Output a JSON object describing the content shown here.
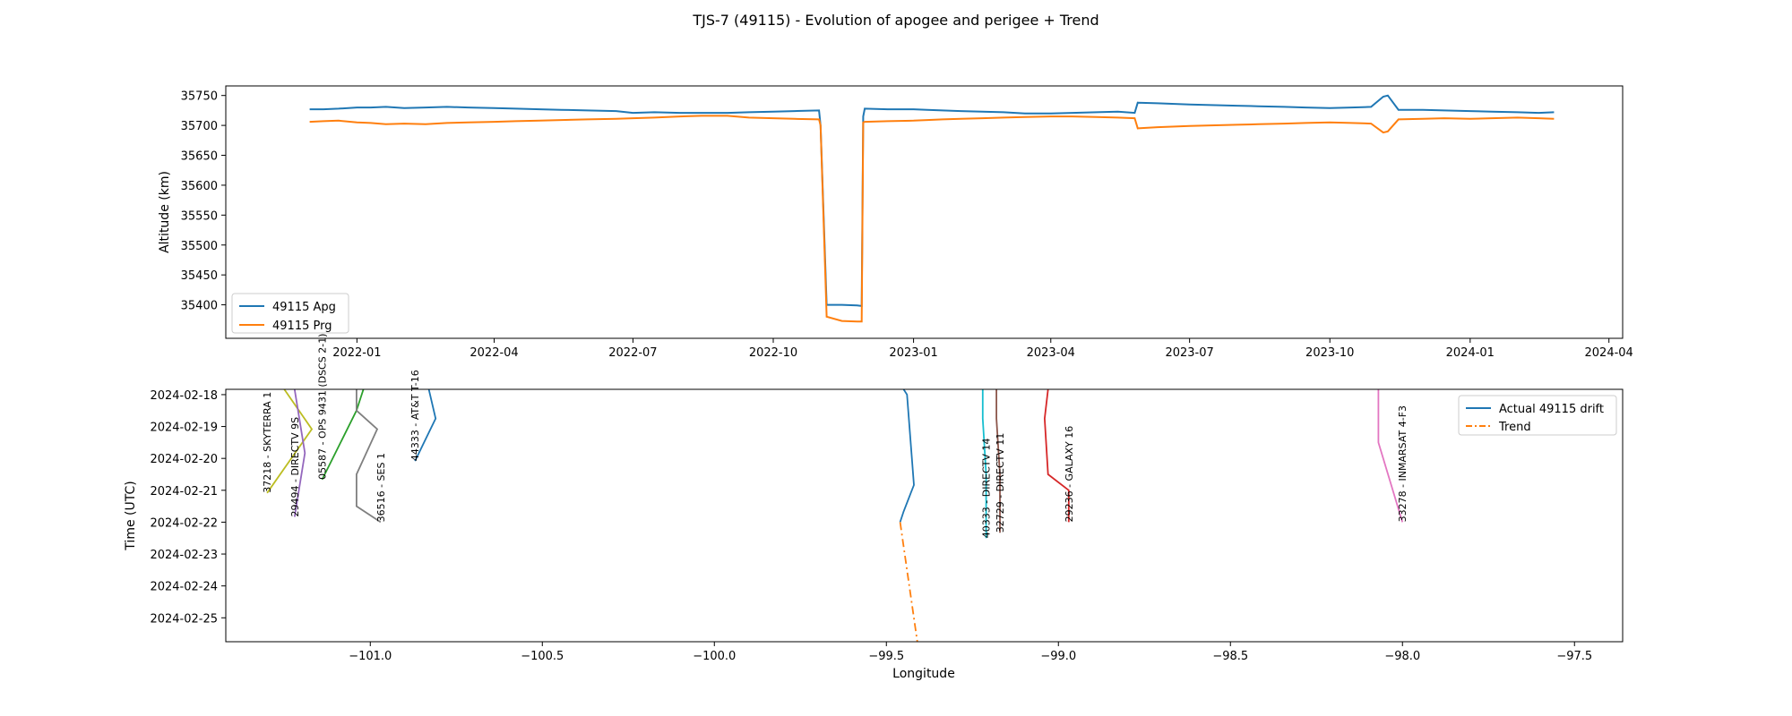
{
  "title": "TJS-7 (49115) - Evolution of apogee and perigee + Trend",
  "chart_data": [
    {
      "type": "line",
      "ylabel": "Altitude (km)",
      "xlabel": "",
      "x_is_date": true,
      "xlim": [
        "2021-10-07",
        "2024-04-10"
      ],
      "ylim": [
        35344,
        35766
      ],
      "xticks": [
        "2022-01",
        "2022-04",
        "2022-07",
        "2022-10",
        "2023-01",
        "2023-04",
        "2023-07",
        "2023-10",
        "2024-01",
        "2024-04"
      ],
      "yticks": [
        35400,
        35450,
        35500,
        35550,
        35600,
        35650,
        35700,
        35750
      ],
      "legend_position": "lower-left",
      "series": [
        {
          "name": "49115 Apg",
          "color": "#1f77b4",
          "x": [
            "2021-12-01",
            "2021-12-10",
            "2021-12-20",
            "2022-01-01",
            "2022-01-10",
            "2022-01-20",
            "2022-02-01",
            "2022-02-15",
            "2022-03-01",
            "2022-03-15",
            "2022-04-01",
            "2022-04-15",
            "2022-05-01",
            "2022-05-15",
            "2022-06-01",
            "2022-06-20",
            "2022-07-01",
            "2022-07-15",
            "2022-08-01",
            "2022-08-15",
            "2022-09-01",
            "2022-09-15",
            "2022-10-01",
            "2022-10-15",
            "2022-10-31",
            "2022-11-01",
            "2022-11-05",
            "2022-11-15",
            "2022-11-25",
            "2022-11-28",
            "2022-11-29",
            "2022-11-30",
            "2022-12-15",
            "2023-01-01",
            "2023-01-10",
            "2023-01-20",
            "2023-02-01",
            "2023-02-15",
            "2023-03-01",
            "2023-03-15",
            "2023-04-01",
            "2023-04-15",
            "2023-05-01",
            "2023-05-15",
            "2023-05-26",
            "2023-05-28",
            "2023-06-10",
            "2023-07-01",
            "2023-07-15",
            "2023-08-01",
            "2023-08-15",
            "2023-09-01",
            "2023-09-15",
            "2023-10-01",
            "2023-10-15",
            "2023-10-28",
            "2023-11-05",
            "2023-11-08",
            "2023-11-15",
            "2023-12-01",
            "2023-12-15",
            "2024-01-01",
            "2024-01-15",
            "2024-02-01",
            "2024-02-15",
            "2024-02-25"
          ],
          "values": [
            35727,
            35727,
            35728,
            35730,
            35730,
            35731,
            35729,
            35730,
            35731,
            35730,
            35729,
            35728,
            35727,
            35726,
            35725,
            35724,
            35721,
            35722,
            35721,
            35721,
            35721,
            35722,
            35723,
            35724,
            35725,
            35700,
            35400,
            35400,
            35399,
            35398,
            35715,
            35728,
            35727,
            35727,
            35726,
            35725,
            35724,
            35723,
            35722,
            35720,
            35720,
            35721,
            35722,
            35723,
            35721,
            35738,
            35737,
            35735,
            35734,
            35733,
            35732,
            35731,
            35730,
            35729,
            35730,
            35731,
            35748,
            35750,
            35726,
            35726,
            35725,
            35724,
            35723,
            35722,
            35721,
            35722
          ]
        },
        {
          "name": "49115 Prg",
          "color": "#ff7f0e",
          "x": [
            "2021-12-01",
            "2021-12-10",
            "2021-12-20",
            "2022-01-01",
            "2022-01-10",
            "2022-01-20",
            "2022-02-01",
            "2022-02-15",
            "2022-03-01",
            "2022-03-15",
            "2022-04-01",
            "2022-04-15",
            "2022-05-01",
            "2022-05-15",
            "2022-06-01",
            "2022-06-20",
            "2022-07-01",
            "2022-07-15",
            "2022-08-01",
            "2022-08-15",
            "2022-09-01",
            "2022-09-15",
            "2022-10-01",
            "2022-10-15",
            "2022-10-31",
            "2022-11-01",
            "2022-11-05",
            "2022-11-15",
            "2022-11-25",
            "2022-11-28",
            "2022-11-29",
            "2022-11-30",
            "2022-12-15",
            "2023-01-01",
            "2023-01-10",
            "2023-01-20",
            "2023-02-01",
            "2023-02-15",
            "2023-03-01",
            "2023-03-15",
            "2023-04-01",
            "2023-04-15",
            "2023-05-01",
            "2023-05-15",
            "2023-05-26",
            "2023-05-28",
            "2023-06-10",
            "2023-07-01",
            "2023-07-15",
            "2023-08-01",
            "2023-08-15",
            "2023-09-01",
            "2023-09-15",
            "2023-10-01",
            "2023-10-15",
            "2023-10-28",
            "2023-11-05",
            "2023-11-08",
            "2023-11-15",
            "2023-12-01",
            "2023-12-15",
            "2024-01-01",
            "2024-01-15",
            "2024-02-01",
            "2024-02-15",
            "2024-02-25"
          ],
          "values": [
            35706,
            35707,
            35708,
            35705,
            35704,
            35702,
            35703,
            35702,
            35704,
            35705,
            35706,
            35707,
            35708,
            35709,
            35710,
            35711,
            35712,
            35713,
            35715,
            35716,
            35716,
            35713,
            35712,
            35711,
            35710,
            35700,
            35380,
            35373,
            35372,
            35372,
            35705,
            35706,
            35707,
            35708,
            35709,
            35710,
            35711,
            35712,
            35713,
            35714,
            35715,
            35715,
            35714,
            35713,
            35712,
            35695,
            35697,
            35699,
            35700,
            35701,
            35702,
            35703,
            35704,
            35705,
            35704,
            35703,
            35688,
            35690,
            35710,
            35711,
            35712,
            35711,
            35712,
            35713,
            35712,
            35711
          ]
        }
      ]
    },
    {
      "type": "line",
      "xlabel": "Longitude",
      "ylabel": "Time (UTC)",
      "y_is_date": true,
      "y_inverted": true,
      "xlim": [
        -101.42,
        -97.36
      ],
      "ylim": [
        "2024-02-17 20:00",
        "2024-02-25 18:00"
      ],
      "xticks": [
        -101.0,
        -100.5,
        -100.0,
        -99.5,
        -99.0,
        -98.5,
        -98.0,
        -97.5
      ],
      "xtick_labels": [
        "−101.0",
        "−100.5",
        "−100.0",
        "−99.5",
        "−99.0",
        "−98.5",
        "−98.0",
        "−97.5"
      ],
      "yticks": [
        "2024-02-18",
        "2024-02-19",
        "2024-02-20",
        "2024-02-21",
        "2024-02-22",
        "2024-02-23",
        "2024-02-24",
        "2024-02-25"
      ],
      "legend_position": "upper-right",
      "legend": [
        {
          "name": "Actual 49115 drift",
          "color": "#1f77b4",
          "dash": "solid"
        },
        {
          "name": "Trend",
          "color": "#ff7f0e",
          "dash": "dashdot"
        }
      ],
      "series": [
        {
          "name": "Actual 49115 drift",
          "color": "#1f77b4",
          "dash": "solid",
          "x": [
            -99.45,
            -99.44,
            -99.42,
            -99.45,
            -99.46
          ],
          "y": [
            "2024-02-17 20:00",
            "2024-02-18 00:00",
            "2024-02-20 20:00",
            "2024-02-21 16:00",
            "2024-02-22 00:00"
          ]
        },
        {
          "name": "Trend",
          "color": "#ff7f0e",
          "dash": "dashdot",
          "x": [
            -99.46,
            -99.41
          ],
          "y": [
            "2024-02-22 00:00",
            "2024-02-25 18:00"
          ]
        },
        {
          "color": "#bcbd22",
          "x": [
            -101.25,
            -101.17,
            -101.3
          ],
          "y": [
            "2024-02-17 20:00",
            "2024-02-19 02:00",
            "2024-02-21 02:00"
          ]
        },
        {
          "color": "#9467bd",
          "x": [
            -101.22,
            -101.19,
            -101.22
          ],
          "y": [
            "2024-02-17 20:00",
            "2024-02-19 20:00",
            "2024-02-21 20:00"
          ]
        },
        {
          "color": "#2ca02c",
          "x": [
            -101.02,
            -101.04,
            -101.14
          ],
          "y": [
            "2024-02-17 20:00",
            "2024-02-18 12:00",
            "2024-02-20 16:00"
          ]
        },
        {
          "color": "#7f7f7f",
          "x": [
            -101.04,
            -101.04,
            -100.98,
            -101.04,
            -101.04,
            -100.97
          ],
          "y": [
            "2024-02-17 20:00",
            "2024-02-18 12:00",
            "2024-02-19 02:00",
            "2024-02-20 12:00",
            "2024-02-21 12:00",
            "2024-02-22 00:00"
          ]
        },
        {
          "color": "#1f77b4",
          "x": [
            -100.83,
            -100.81,
            -100.87
          ],
          "y": [
            "2024-02-17 20:00",
            "2024-02-18 18:00",
            "2024-02-20 02:00"
          ]
        },
        {
          "color": "#17becf",
          "x": [
            -99.22,
            -99.22,
            -99.21,
            -99.21
          ],
          "y": [
            "2024-02-17 20:00",
            "2024-02-18 18:00",
            "2024-02-20 12:00",
            "2024-02-22 12:00"
          ]
        },
        {
          "color": "#8c564b",
          "x": [
            -99.18,
            -99.18,
            -99.17,
            -99.17
          ],
          "y": [
            "2024-02-17 20:00",
            "2024-02-18 18:00",
            "2024-02-20 12:00",
            "2024-02-22 08:00"
          ]
        },
        {
          "color": "#d62728",
          "x": [
            -99.03,
            -99.04,
            -99.03,
            -98.97,
            -98.97
          ],
          "y": [
            "2024-02-17 20:00",
            "2024-02-18 18:00",
            "2024-02-20 12:00",
            "2024-02-21 00:00",
            "2024-02-22 00:00"
          ]
        },
        {
          "color": "#e377c2",
          "x": [
            -98.07,
            -98.07,
            -98.0
          ],
          "y": [
            "2024-02-17 20:00",
            "2024-02-19 12:00",
            "2024-02-22 00:00"
          ]
        }
      ],
      "annotations": [
        {
          "text": "37218 - SKYTERRA 1",
          "x": -101.3,
          "y": "2024-02-21 02:00"
        },
        {
          "text": "29494 - DIRECTV 9S",
          "x": -101.22,
          "y": "2024-02-21 20:00"
        },
        {
          "text": "05587 - OPS 9431 (DSCS 2-1)",
          "x": -101.14,
          "y": "2024-02-20 16:00"
        },
        {
          "text": "36516 - SES 1",
          "x": -100.97,
          "y": "2024-02-22 00:00"
        },
        {
          "text": "44333 - AT&T T-16",
          "x": -100.87,
          "y": "2024-02-20 02:00"
        },
        {
          "text": "40333 - DIRECTV 14",
          "x": -99.21,
          "y": "2024-02-22 12:00"
        },
        {
          "text": "32729 - DIRECTV 11",
          "x": -99.17,
          "y": "2024-02-22 08:00"
        },
        {
          "text": "29236 - GALAXY 16",
          "x": -98.97,
          "y": "2024-02-22 00:00"
        },
        {
          "text": "33278 - INMARSAT 4-F3",
          "x": -98.0,
          "y": "2024-02-22 00:00"
        }
      ]
    }
  ]
}
